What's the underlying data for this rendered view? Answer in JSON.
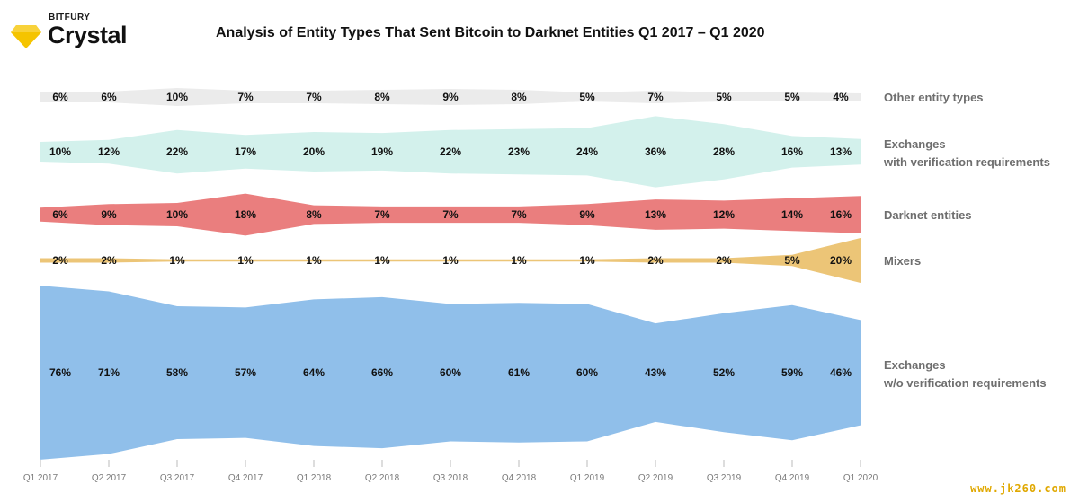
{
  "brand": {
    "top_label": "BITFURY",
    "name": "Crystal",
    "logo_icon": "diamond-icon",
    "logo_color": "#f5c400"
  },
  "watermark": "www.jk260.com",
  "chart_data": {
    "type": "area",
    "title": "Analysis of Entity Types That Sent Bitcoin to Darknet Entities Q1 2017 – Q1 2020",
    "categories": [
      "Q1 2017",
      "Q2 2017",
      "Q3 2017",
      "Q4 2017",
      "Q1 2018",
      "Q2 2018",
      "Q3 2018",
      "Q4 2018",
      "Q1 2019",
      "Q2 2019",
      "Q3 2019",
      "Q4 2019",
      "Q1 2020"
    ],
    "series": [
      {
        "name": "Other entity types",
        "legend": [
          "Other entity types"
        ],
        "color": "#ebebeb",
        "values": [
          6,
          6,
          10,
          7,
          7,
          8,
          9,
          8,
          5,
          7,
          5,
          5,
          4
        ]
      },
      {
        "name": "Exchanges with verification requirements",
        "legend": [
          "Exchanges",
          "with verification requirements"
        ],
        "color": "#d3f1ec",
        "values": [
          10,
          12,
          22,
          17,
          20,
          19,
          22,
          23,
          24,
          36,
          28,
          16,
          13
        ]
      },
      {
        "name": "Darknet entities",
        "legend": [
          "Darknet entities"
        ],
        "color": "#ea7e7e",
        "values": [
          6,
          9,
          10,
          18,
          8,
          7,
          7,
          7,
          9,
          13,
          12,
          14,
          16
        ]
      },
      {
        "name": "Mixers",
        "legend": [
          "Mixers"
        ],
        "color": "#ecc577",
        "values": [
          2,
          2,
          1,
          1,
          1,
          1,
          1,
          1,
          1,
          2,
          2,
          5,
          20
        ]
      },
      {
        "name": "Exchanges w/o verification requirements",
        "legend": [
          "Exchanges",
          "w/o verification requirements"
        ],
        "color": "#90bfea",
        "values": [
          76,
          71,
          58,
          57,
          64,
          66,
          60,
          61,
          60,
          43,
          52,
          59,
          46
        ]
      }
    ],
    "value_suffix": "%"
  }
}
